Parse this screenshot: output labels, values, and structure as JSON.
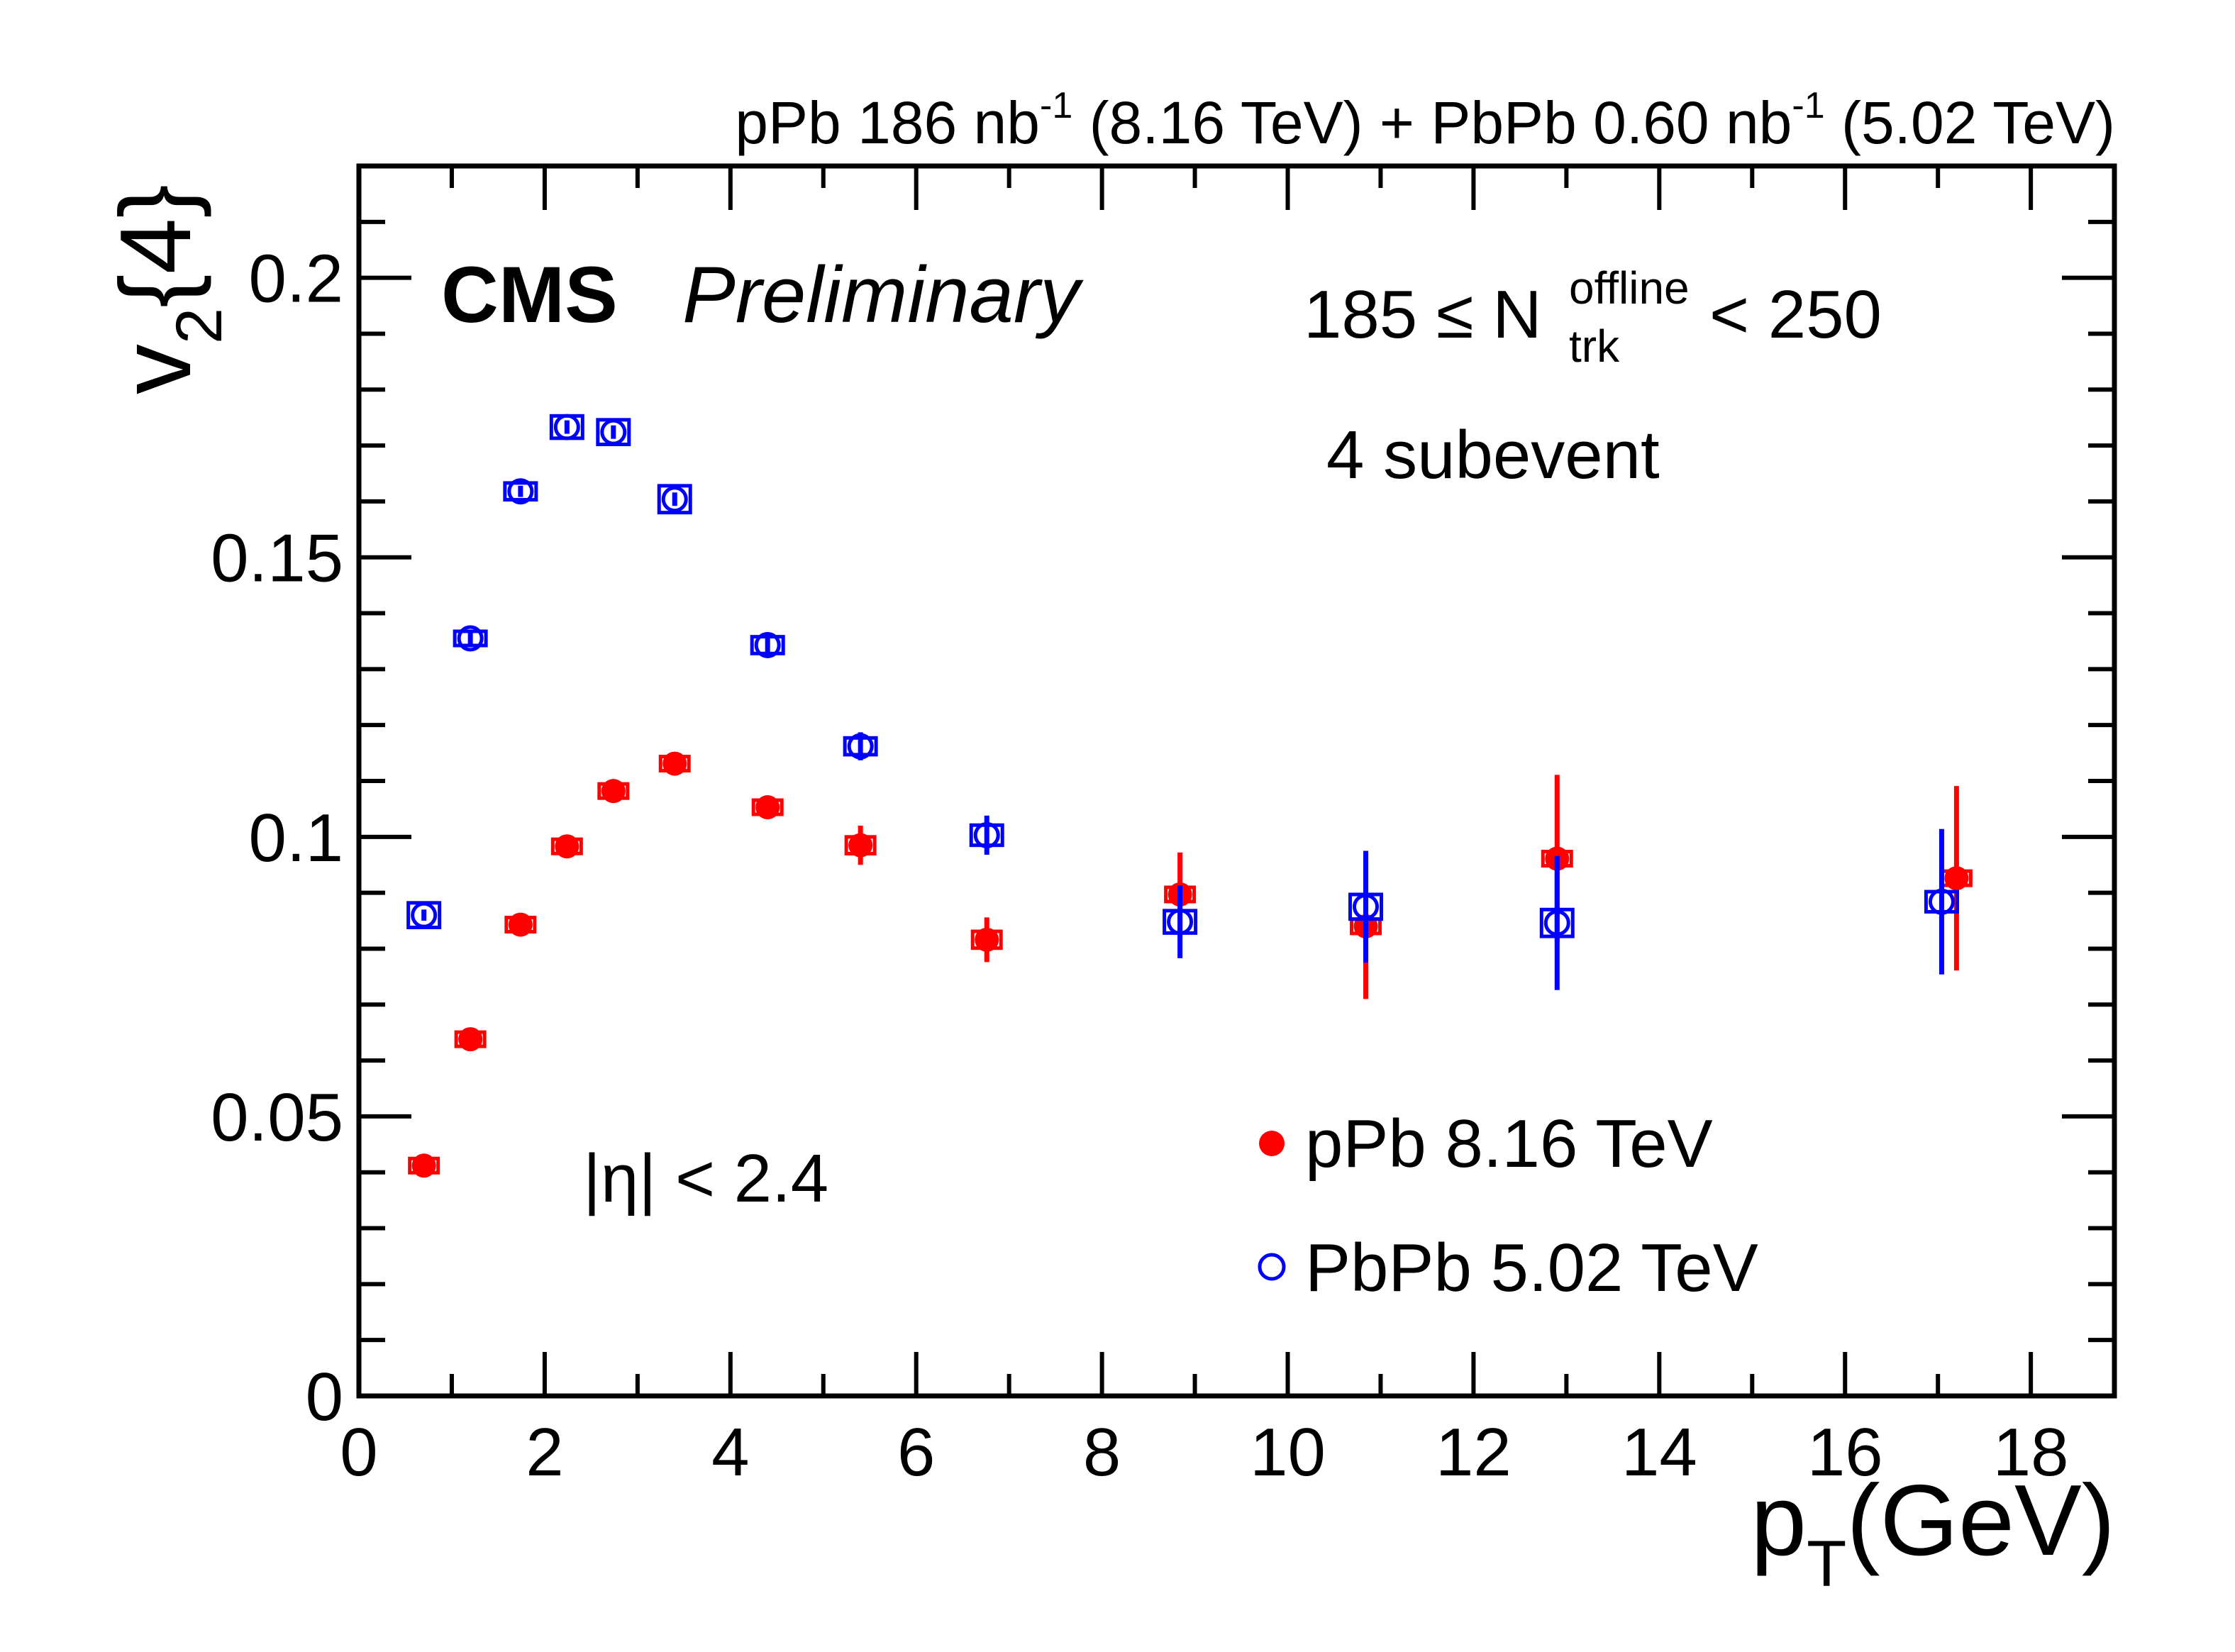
{
  "chart_data": {
    "type": "scatter",
    "header": {
      "part1": "pPb 186 nb",
      "sup1": "-1",
      "part2": " (8.16 TeV) + PbPb 0.60 nb",
      "sup2": "-1",
      "part3": " (5.02 TeV)"
    },
    "cms_label": "CMS",
    "preliminary_label": "Preliminary",
    "multiplicity": {
      "prefix": "185 ≤ N",
      "superscript": "offline",
      "subscript": "trk",
      "suffix": " < 250"
    },
    "method_label": "4 subevent",
    "eta_label": "|η| < 2.4",
    "xlabel": {
      "main": "p",
      "sub": "T",
      "unit": "(GeV)"
    },
    "ylabel": {
      "main": "v",
      "sub": "2",
      "suffix": "{4}"
    },
    "xlim": [
      0,
      18.9
    ],
    "ylim": [
      0,
      0.22
    ],
    "x_ticks": [
      0,
      2,
      4,
      6,
      8,
      10,
      12,
      14,
      16,
      18
    ],
    "x_tick_labels": [
      "0",
      "2",
      "4",
      "6",
      "8",
      "10",
      "12",
      "14",
      "16",
      "18"
    ],
    "y_ticks": [
      0,
      0.05,
      0.1,
      0.15,
      0.2
    ],
    "y_tick_labels": [
      "0",
      "0.05",
      "0.1",
      "0.15",
      "0.2"
    ],
    "legend_position": "bottom-right",
    "series": [
      {
        "name": "pPb 8.16 TeV",
        "color": "#ff0000",
        "marker": "filled-circle",
        "points": [
          {
            "x": 0.7,
            "y": 0.0412,
            "err": 0.0012,
            "syst": 0.0012
          },
          {
            "x": 1.2,
            "y": 0.0638,
            "err": 0.001,
            "syst": 0.0012
          },
          {
            "x": 1.74,
            "y": 0.0843,
            "err": 0.001,
            "syst": 0.0012
          },
          {
            "x": 2.24,
            "y": 0.0983,
            "err": 0.0012,
            "syst": 0.0012
          },
          {
            "x": 2.74,
            "y": 0.1082,
            "err": 0.0012,
            "syst": 0.0012
          },
          {
            "x": 3.4,
            "y": 0.1131,
            "err": 0.0012,
            "syst": 0.0012
          },
          {
            "x": 4.4,
            "y": 0.1053,
            "err": 0.002,
            "syst": 0.0012
          },
          {
            "x": 5.4,
            "y": 0.0985,
            "err": 0.0035,
            "syst": 0.0015
          },
          {
            "x": 6.76,
            "y": 0.0816,
            "err": 0.004,
            "syst": 0.0015
          },
          {
            "x": 8.84,
            "y": 0.0897,
            "err": 0.0075,
            "syst": 0.0012
          },
          {
            "x": 10.84,
            "y": 0.084,
            "err": 0.013,
            "syst": 0.0012
          },
          {
            "x": 12.9,
            "y": 0.0961,
            "err": 0.015,
            "syst": 0.0012
          },
          {
            "x": 17.2,
            "y": 0.0926,
            "err": 0.0165,
            "syst": 0.0012
          }
        ]
      },
      {
        "name": "PbPb 5.02 TeV",
        "color": "#0000ff",
        "marker": "open-circle",
        "points": [
          {
            "x": 0.7,
            "y": 0.086,
            "err": 0.001,
            "syst": 0.0022
          },
          {
            "x": 1.2,
            "y": 0.1355,
            "err": 0.001,
            "syst": 0.0012
          },
          {
            "x": 1.74,
            "y": 0.1618,
            "err": 0.001,
            "syst": 0.0015
          },
          {
            "x": 2.24,
            "y": 0.1733,
            "err": 0.0012,
            "syst": 0.002
          },
          {
            "x": 2.74,
            "y": 0.1724,
            "err": 0.0012,
            "syst": 0.0022
          },
          {
            "x": 3.4,
            "y": 0.1604,
            "err": 0.0012,
            "syst": 0.0024
          },
          {
            "x": 4.4,
            "y": 0.1343,
            "err": 0.0015,
            "syst": 0.0015
          },
          {
            "x": 5.4,
            "y": 0.1162,
            "err": 0.0025,
            "syst": 0.0015
          },
          {
            "x": 6.76,
            "y": 0.1003,
            "err": 0.0035,
            "syst": 0.0018
          },
          {
            "x": 8.84,
            "y": 0.0848,
            "err": 0.0065,
            "syst": 0.002
          },
          {
            "x": 10.84,
            "y": 0.0875,
            "err": 0.01,
            "syst": 0.0022
          },
          {
            "x": 12.9,
            "y": 0.0846,
            "err": 0.012,
            "syst": 0.0024
          },
          {
            "x": 17.04,
            "y": 0.0884,
            "err": 0.013,
            "syst": 0.0018
          }
        ]
      }
    ]
  }
}
